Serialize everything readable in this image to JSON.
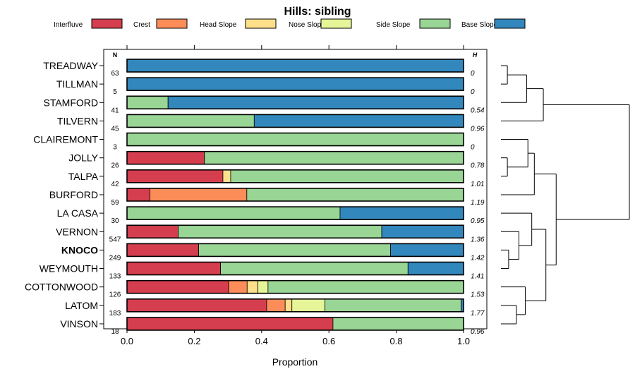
{
  "chart_data": {
    "type": "bar",
    "stacked": true,
    "orientation": "horizontal",
    "title": "Hills: sibling",
    "xlabel": "Proportion",
    "ylabel": "",
    "xlim": [
      0,
      1
    ],
    "x_ticks": [
      "0.0",
      "0.2",
      "0.4",
      "0.6",
      "0.8",
      "1.0"
    ],
    "x_tick_values": [
      0,
      0.2,
      0.4,
      0.6,
      0.8,
      1.0
    ],
    "n_header": "N",
    "h_header": "H",
    "highlight": "KNOCO",
    "legend": [
      {
        "name": "Interfluve",
        "color": "#d53e4f"
      },
      {
        "name": "Crest",
        "color": "#fc8d59"
      },
      {
        "name": "Head Slope",
        "color": "#fee08b"
      },
      {
        "name": "Nose Slope",
        "color": "#e6f598"
      },
      {
        "name": "Side Slope",
        "color": "#99d594"
      },
      {
        "name": "Base Slope",
        "color": "#3288bd"
      }
    ],
    "categories": [
      "TREADWAY",
      "TILLMAN",
      "STAMFORD",
      "TILVERN",
      "CLAIREMONT",
      "JOLLY",
      "TALPA",
      "BURFORD",
      "LA CASA",
      "VERNON",
      "KNOCO",
      "WEYMOUTH",
      "COTTONWOOD",
      "LATOM",
      "VINSON"
    ],
    "n": [
      "63",
      "5",
      "41",
      "45",
      "3",
      "26",
      "42",
      "59",
      "30",
      "547",
      "249",
      "133",
      "126",
      "183",
      "18"
    ],
    "h": [
      "0",
      "0",
      "0.54",
      "0.96",
      "0",
      "0.78",
      "1.01",
      "1.19",
      "0.95",
      "1.36",
      "1.42",
      "1.41",
      "1.53",
      "1.77",
      "0.96"
    ],
    "series": [
      {
        "name": "Interfluve",
        "values": [
          0,
          0,
          0,
          0,
          0,
          0.23,
          0.285,
          0.068,
          0,
          0.152,
          0.213,
          0.278,
          0.302,
          0.415,
          0.612
        ]
      },
      {
        "name": "Crest",
        "values": [
          0,
          0,
          0,
          0,
          0,
          0,
          0,
          0.288,
          0,
          0,
          0,
          0,
          0.055,
          0.055,
          0
        ]
      },
      {
        "name": "Head Slope",
        "values": [
          0,
          0,
          0,
          0,
          0,
          0,
          0.023,
          0,
          0,
          0,
          0,
          0,
          0.032,
          0.02,
          0
        ]
      },
      {
        "name": "Nose Slope",
        "values": [
          0,
          0,
          0,
          0,
          0,
          0,
          0,
          0,
          0,
          0,
          0,
          0,
          0.03,
          0.098,
          0
        ]
      },
      {
        "name": "Side Slope",
        "values": [
          0,
          0,
          0.122,
          0.378,
          1.0,
          0.77,
          0.692,
          0.644,
          0.633,
          0.605,
          0.57,
          0.557,
          0.581,
          0.405,
          0.388
        ]
      },
      {
        "name": "Base Slope",
        "values": [
          1.0,
          1.0,
          0.878,
          0.622,
          0,
          0,
          0,
          0,
          0.367,
          0.243,
          0.217,
          0.165,
          0,
          0.007,
          0
        ]
      }
    ],
    "dendrogram": {
      "type": "hierarchical clustering",
      "merges": [
        [
          0,
          1,
          0.05
        ],
        [
          -1,
          2,
          0.2
        ],
        [
          -2,
          3,
          0.33
        ],
        [
          5,
          6,
          0.05
        ],
        [
          -4,
          4,
          0.21
        ],
        [
          -5,
          7,
          0.26
        ],
        [
          10,
          11,
          0.06
        ],
        [
          9,
          -7,
          0.14
        ],
        [
          8,
          -8,
          0.24
        ],
        [
          13,
          14,
          0.12
        ],
        [
          12,
          -10,
          0.19
        ],
        [
          -9,
          -11,
          0.35
        ],
        [
          -6,
          -12,
          0.43
        ],
        [
          -3,
          -13,
          1.0
        ]
      ]
    }
  }
}
